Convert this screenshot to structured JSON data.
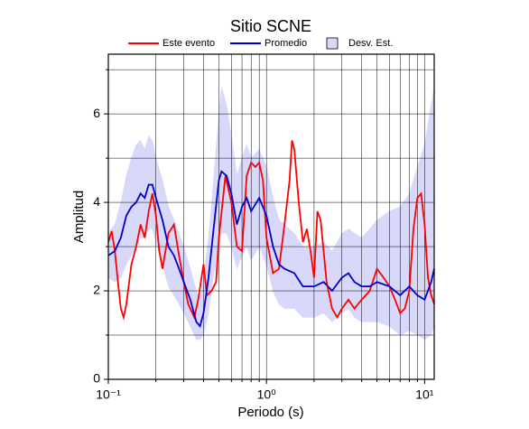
{
  "chart_data": {
    "type": "line",
    "title": "Sitio SCNE",
    "xlabel": "Periodo (s)",
    "ylabel": "Amplitud",
    "xscale": "log",
    "xlim": [
      0.1,
      11.5
    ],
    "ylim": [
      0,
      7.35
    ],
    "xticks": [
      {
        "value": 0.1,
        "label": "10⁻¹"
      },
      {
        "value": 1,
        "label": "10⁰"
      },
      {
        "value": 10,
        "label": "10¹"
      }
    ],
    "xminor": [
      0.2,
      0.3,
      0.4,
      0.5,
      0.6,
      0.7,
      0.8,
      0.9,
      2,
      3,
      4,
      5,
      6,
      7,
      8,
      9
    ],
    "yticks": [
      0,
      2,
      4,
      6
    ],
    "yminor": [
      1,
      3,
      5,
      7
    ],
    "grid": true,
    "series": [
      {
        "name": "Este evento",
        "color": "#ff0000",
        "x": [
          0.1,
          0.105,
          0.11,
          0.115,
          0.12,
          0.125,
          0.13,
          0.14,
          0.15,
          0.16,
          0.17,
          0.18,
          0.19,
          0.2,
          0.21,
          0.22,
          0.24,
          0.26,
          0.28,
          0.3,
          0.32,
          0.35,
          0.37,
          0.4,
          0.42,
          0.45,
          0.48,
          0.5,
          0.55,
          0.6,
          0.65,
          0.7,
          0.75,
          0.8,
          0.85,
          0.9,
          0.95,
          1.0,
          1.1,
          1.2,
          1.3,
          1.4,
          1.45,
          1.5,
          1.6,
          1.7,
          1.8,
          1.9,
          2.0,
          2.1,
          2.2,
          2.4,
          2.6,
          2.8,
          3.0,
          3.3,
          3.6,
          4.0,
          4.5,
          5.0,
          5.5,
          6.0,
          6.5,
          7.0,
          7.5,
          8.0,
          8.5,
          9.0,
          9.5,
          10.0,
          10.5,
          11.0,
          11.5
        ],
        "values": [
          3.1,
          3.35,
          2.9,
          2.2,
          1.6,
          1.4,
          1.7,
          2.6,
          3.0,
          3.5,
          3.2,
          3.8,
          4.2,
          3.7,
          2.9,
          2.5,
          3.3,
          3.5,
          2.8,
          2.2,
          1.7,
          1.4,
          1.8,
          2.6,
          1.9,
          2.0,
          2.2,
          3.2,
          4.6,
          4.0,
          3.0,
          2.9,
          4.6,
          4.9,
          4.8,
          4.9,
          4.5,
          3.2,
          2.4,
          2.5,
          3.5,
          4.5,
          5.4,
          5.2,
          4.0,
          3.1,
          3.4,
          2.9,
          2.3,
          3.8,
          3.6,
          2.2,
          1.6,
          1.4,
          1.6,
          1.8,
          1.6,
          1.8,
          2.0,
          2.5,
          2.3,
          2.1,
          1.8,
          1.5,
          1.6,
          2.0,
          3.4,
          4.1,
          4.2,
          3.5,
          2.3,
          1.9,
          1.7
        ]
      },
      {
        "name": "Promedio",
        "color": "#0000cc",
        "x": [
          0.1,
          0.11,
          0.12,
          0.13,
          0.14,
          0.15,
          0.16,
          0.17,
          0.18,
          0.19,
          0.2,
          0.22,
          0.24,
          0.26,
          0.28,
          0.3,
          0.33,
          0.36,
          0.38,
          0.4,
          0.43,
          0.46,
          0.5,
          0.52,
          0.56,
          0.6,
          0.65,
          0.7,
          0.75,
          0.8,
          0.9,
          1.0,
          1.1,
          1.2,
          1.3,
          1.5,
          1.7,
          2.0,
          2.3,
          2.6,
          3.0,
          3.3,
          3.6,
          4.0,
          4.5,
          5.0,
          6.0,
          7.0,
          8.0,
          9.0,
          10,
          11,
          11.5
        ],
        "values": [
          2.8,
          2.9,
          3.2,
          3.7,
          3.9,
          4.0,
          4.2,
          4.1,
          4.4,
          4.4,
          4.1,
          3.6,
          3.0,
          2.8,
          2.5,
          2.2,
          1.8,
          1.3,
          1.2,
          1.5,
          2.3,
          3.3,
          4.5,
          4.7,
          4.6,
          4.2,
          3.5,
          3.9,
          4.1,
          3.8,
          4.1,
          3.7,
          3.0,
          2.6,
          2.5,
          2.4,
          2.1,
          2.1,
          2.2,
          2.0,
          2.3,
          2.4,
          2.2,
          2.1,
          2.1,
          2.2,
          2.1,
          1.9,
          2.1,
          1.9,
          1.8,
          2.2,
          2.5
        ]
      }
    ],
    "band": {
      "name": "Desv. Est.",
      "color": "#d8d8fa",
      "x": [
        0.1,
        0.11,
        0.12,
        0.13,
        0.14,
        0.15,
        0.16,
        0.17,
        0.18,
        0.19,
        0.2,
        0.22,
        0.24,
        0.26,
        0.28,
        0.3,
        0.33,
        0.36,
        0.38,
        0.4,
        0.43,
        0.46,
        0.5,
        0.52,
        0.56,
        0.6,
        0.65,
        0.7,
        0.75,
        0.8,
        0.9,
        1.0,
        1.1,
        1.2,
        1.3,
        1.5,
        1.7,
        2.0,
        2.3,
        2.6,
        3.0,
        3.3,
        3.6,
        4.0,
        4.5,
        5.0,
        6.0,
        7.0,
        8.0,
        9.0,
        10,
        11,
        11.5
      ],
      "lower": [
        2.3,
        2.2,
        2.3,
        2.6,
        2.8,
        3.0,
        3.2,
        3.2,
        3.4,
        3.4,
        3.1,
        2.6,
        2.1,
        1.9,
        1.7,
        1.5,
        1.2,
        0.9,
        0.9,
        1.0,
        1.5,
        2.3,
        3.0,
        3.3,
        3.3,
        3.0,
        2.5,
        2.8,
        3.0,
        2.7,
        3.0,
        2.6,
        2.0,
        1.7,
        1.6,
        1.6,
        1.4,
        1.4,
        1.5,
        1.3,
        1.5,
        1.6,
        1.4,
        1.3,
        1.3,
        1.3,
        1.2,
        1.0,
        1.1,
        1.0,
        0.9,
        1.0,
        1.2
      ],
      "upper": [
        3.3,
        3.5,
        4.0,
        4.6,
        5.0,
        5.3,
        5.4,
        5.2,
        5.5,
        5.4,
        5.0,
        4.5,
        3.9,
        3.6,
        3.3,
        3.0,
        2.5,
        2.0,
        1.8,
        2.3,
        3.2,
        4.4,
        6.0,
        6.6,
        6.2,
        5.5,
        4.6,
        5.0,
        5.3,
        5.0,
        5.2,
        4.8,
        4.1,
        3.6,
        3.5,
        3.3,
        3.0,
        3.0,
        3.1,
        2.9,
        3.3,
        3.4,
        3.3,
        3.2,
        3.4,
        3.6,
        3.8,
        3.9,
        4.2,
        4.8,
        5.3,
        6.2,
        6.6
      ]
    }
  }
}
